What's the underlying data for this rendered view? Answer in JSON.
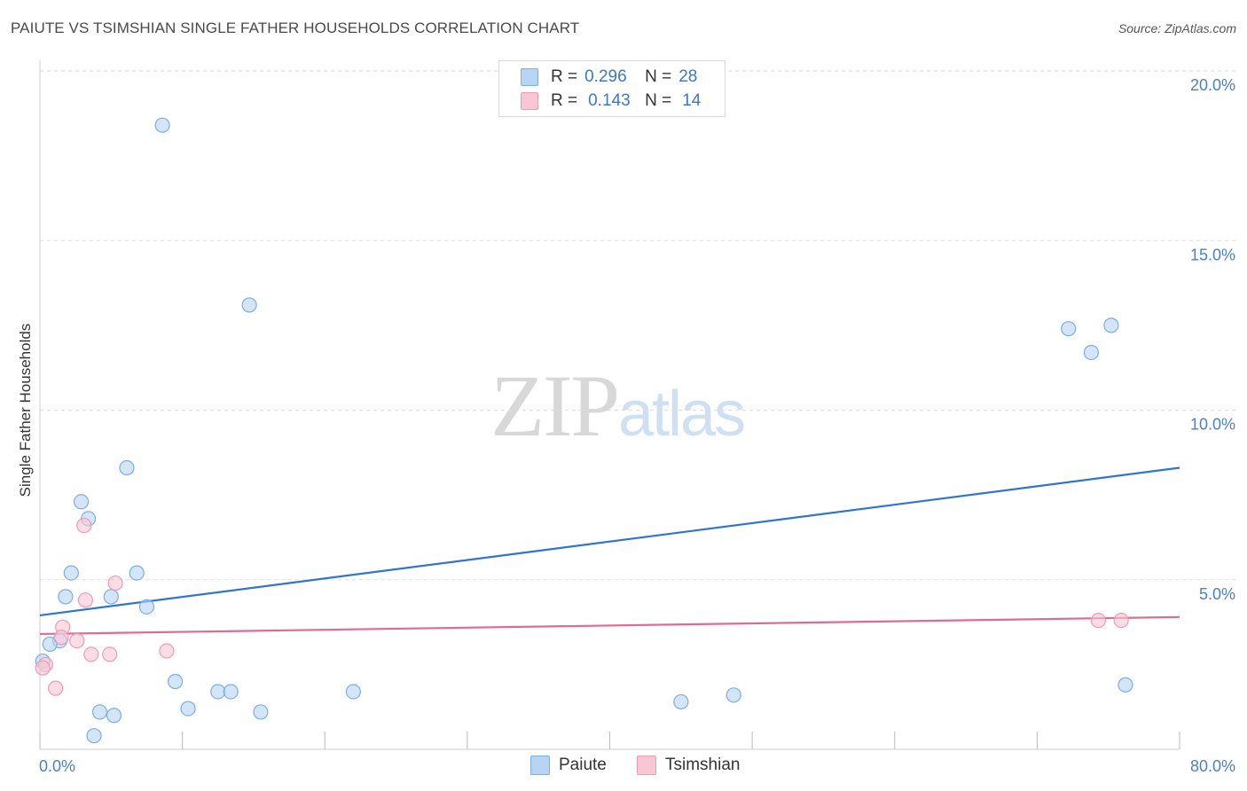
{
  "title": "PAIUTE VS TSIMSHIAN SINGLE FATHER HOUSEHOLDS CORRELATION CHART",
  "source": "Source: ZipAtlas.com",
  "watermark": {
    "zip": "ZIP",
    "atlas": "atlas"
  },
  "legend": {
    "paiute": {
      "r_label": "R =",
      "r_value": "0.296",
      "n_label": "N =",
      "n_value": "28"
    },
    "tsimshian": {
      "r_label": "R =",
      "r_value": "0.143",
      "n_label": "N =",
      "n_value": "14"
    }
  },
  "colors": {
    "paiute_fill": "#b8d4f4",
    "paiute_stroke": "#7aaee6",
    "paiute_line": "#2f74d0",
    "tsimshian_fill": "#f9c6d4",
    "tsimshian_stroke": "#ef9ab3",
    "tsimshian_line": "#e06a95",
    "tick": "#4a80c8",
    "grid": "#dddddd"
  },
  "chart_data": {
    "type": "scatter",
    "title": "PAIUTE VS TSIMSHIAN SINGLE FATHER HOUSEHOLDS CORRELATION CHART",
    "xlabel": "",
    "ylabel": "Single Father Households",
    "xlim": [
      0,
      80
    ],
    "ylim": [
      0,
      20
    ],
    "x_tick_labels": [
      "0.0%",
      "80.0%"
    ],
    "y_ticks": [
      5,
      10,
      15,
      20
    ],
    "y_tick_labels": [
      "5.0%",
      "10.0%",
      "15.0%",
      "20.0%"
    ],
    "series": [
      {
        "name": "Paiute",
        "points": [
          [
            8.6,
            18.4
          ],
          [
            14.7,
            13.1
          ],
          [
            6.1,
            8.3
          ],
          [
            2.9,
            7.3
          ],
          [
            3.4,
            6.8
          ],
          [
            2.2,
            5.2
          ],
          [
            6.8,
            5.2
          ],
          [
            1.8,
            4.5
          ],
          [
            5.0,
            4.5
          ],
          [
            7.5,
            4.2
          ],
          [
            1.4,
            3.2
          ],
          [
            0.7,
            3.1
          ],
          [
            0.2,
            2.6
          ],
          [
            9.5,
            2.0
          ],
          [
            12.5,
            1.7
          ],
          [
            13.4,
            1.7
          ],
          [
            22.0,
            1.7
          ],
          [
            5.2,
            1.0
          ],
          [
            10.4,
            1.2
          ],
          [
            4.2,
            1.1
          ],
          [
            15.5,
            1.1
          ],
          [
            3.8,
            0.4
          ],
          [
            45.0,
            1.4
          ],
          [
            48.7,
            1.6
          ],
          [
            72.2,
            12.4
          ],
          [
            73.8,
            11.7
          ],
          [
            75.2,
            12.5
          ],
          [
            76.2,
            1.9
          ]
        ],
        "trend": {
          "x": [
            0,
            80
          ],
          "y": [
            3.95,
            8.3
          ]
        }
      },
      {
        "name": "Tsimshian",
        "points": [
          [
            3.1,
            6.6
          ],
          [
            5.3,
            4.9
          ],
          [
            3.2,
            4.4
          ],
          [
            1.6,
            3.6
          ],
          [
            1.5,
            3.3
          ],
          [
            2.6,
            3.2
          ],
          [
            3.6,
            2.8
          ],
          [
            4.9,
            2.8
          ],
          [
            8.9,
            2.9
          ],
          [
            0.4,
            2.5
          ],
          [
            1.1,
            1.8
          ],
          [
            74.3,
            3.8
          ],
          [
            75.9,
            3.8
          ],
          [
            0.2,
            2.4
          ]
        ],
        "trend": {
          "x": [
            0,
            80
          ],
          "y": [
            3.4,
            3.9
          ]
        }
      }
    ],
    "legend": [
      "Paiute",
      "Tsimshian"
    ],
    "grid": true
  }
}
